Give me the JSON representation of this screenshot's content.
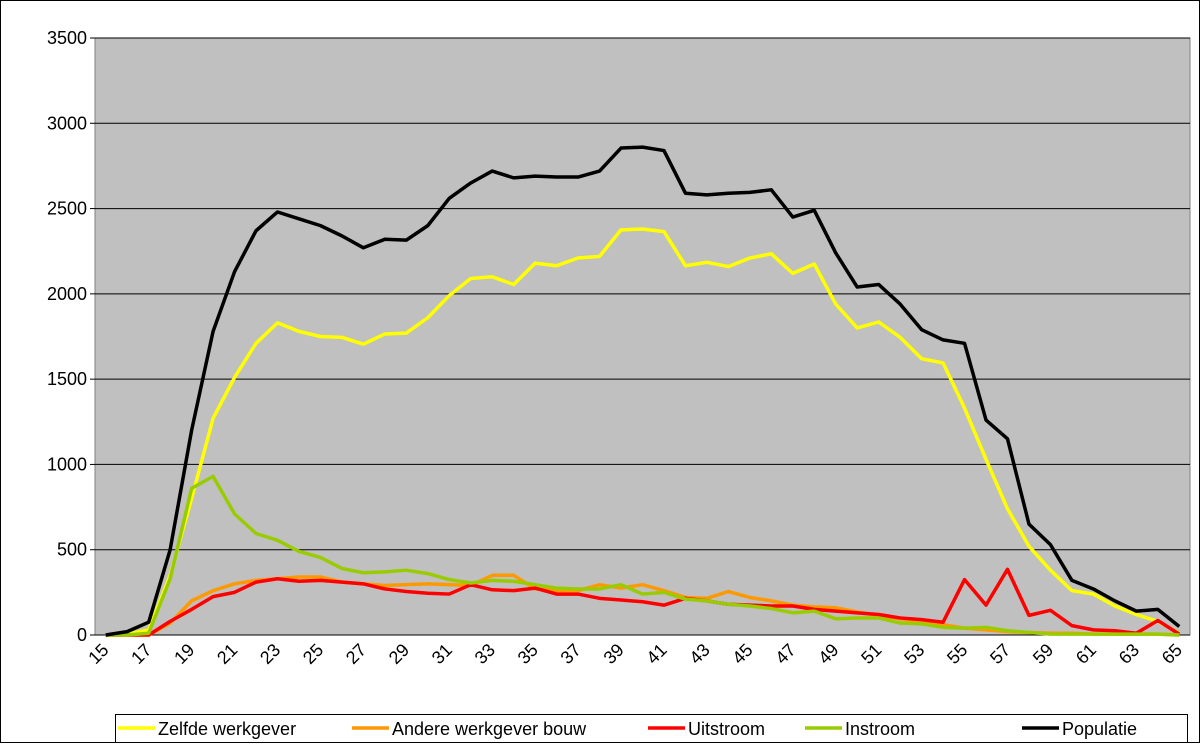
{
  "chart_data": {
    "type": "line",
    "categories": [
      15,
      null,
      17,
      null,
      19,
      null,
      21,
      null,
      23,
      null,
      25,
      null,
      27,
      null,
      29,
      null,
      31,
      null,
      33,
      null,
      35,
      null,
      37,
      null,
      39,
      null,
      41,
      null,
      43,
      null,
      45,
      null,
      47,
      null,
      49,
      null,
      51,
      null,
      53,
      null,
      55,
      null,
      57,
      null,
      59,
      null,
      61,
      null,
      63,
      null,
      65
    ],
    "series": [
      {
        "name": "Zelfde werkgever",
        "color": "#ffff00",
        "values": [
          0,
          5,
          30,
          350,
          800,
          1270,
          1510,
          1710,
          1830,
          1780,
          1750,
          1745,
          1705,
          1765,
          1770,
          1860,
          1990,
          2090,
          2100,
          2055,
          2180,
          2165,
          2210,
          2220,
          2375,
          2380,
          2365,
          2165,
          2185,
          2160,
          2210,
          2235,
          2120,
          2175,
          1940,
          1800,
          1835,
          1745,
          1620,
          1595,
          1330,
          1030,
          740,
          520,
          380,
          260,
          240,
          170,
          120,
          80,
          10
        ]
      },
      {
        "name": "Andere werkgever bouw",
        "color": "#ff9900",
        "values": [
          0,
          0,
          0,
          70,
          200,
          260,
          300,
          320,
          330,
          340,
          340,
          310,
          300,
          290,
          295,
          300,
          295,
          290,
          350,
          350,
          270,
          260,
          260,
          295,
          275,
          295,
          260,
          220,
          215,
          255,
          220,
          200,
          175,
          165,
          160,
          135,
          115,
          95,
          80,
          60,
          40,
          30,
          20,
          15,
          10,
          10,
          5,
          5,
          5,
          5,
          0
        ]
      },
      {
        "name": "Uitstroom",
        "color": "#ff0000",
        "values": [
          0,
          0,
          0,
          80,
          150,
          225,
          250,
          310,
          330,
          315,
          320,
          310,
          300,
          270,
          255,
          245,
          240,
          295,
          265,
          260,
          275,
          240,
          240,
          215,
          205,
          195,
          175,
          215,
          200,
          180,
          175,
          170,
          170,
          150,
          140,
          130,
          120,
          100,
          90,
          75,
          325,
          175,
          385,
          115,
          145,
          55,
          30,
          25,
          10,
          85,
          5
        ]
      },
      {
        "name": "Instroom",
        "color": "#99cc00",
        "values": [
          0,
          0,
          10,
          330,
          860,
          930,
          710,
          595,
          555,
          490,
          455,
          390,
          365,
          370,
          380,
          360,
          325,
          305,
          320,
          315,
          295,
          275,
          270,
          270,
          295,
          240,
          250,
          210,
          200,
          180,
          170,
          155,
          130,
          140,
          95,
          100,
          100,
          70,
          65,
          45,
          40,
          45,
          25,
          15,
          5,
          5,
          5,
          5,
          5,
          5,
          0
        ]
      },
      {
        "name": "Populatie",
        "color": "#000000",
        "values": [
          0,
          20,
          75,
          500,
          1200,
          1780,
          2130,
          2370,
          2480,
          2440,
          2400,
          2340,
          2270,
          2320,
          2315,
          2400,
          2560,
          2650,
          2720,
          2680,
          2690,
          2685,
          2685,
          2720,
          2855,
          2860,
          2840,
          2590,
          2580,
          2590,
          2595,
          2610,
          2450,
          2490,
          2240,
          2040,
          2055,
          1940,
          1790,
          1730,
          1710,
          1260,
          1150,
          650,
          530,
          320,
          270,
          200,
          140,
          150,
          50
        ]
      }
    ],
    "ylim": [
      0,
      3500
    ],
    "yticks": [
      0,
      500,
      1000,
      1500,
      2000,
      2500,
      3000,
      3500
    ],
    "grid": true,
    "legend": "bottom",
    "plot_background": "#c0c0c0"
  }
}
